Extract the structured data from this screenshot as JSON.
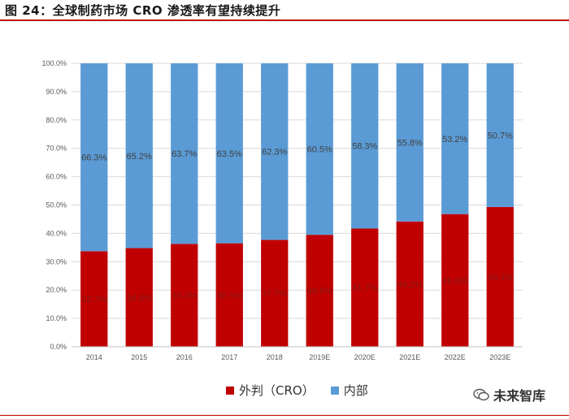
{
  "figure_title": "图 24：全球制药市场 CRO 渗透率有望持续提升",
  "watermark": "未来智库",
  "colors": {
    "cro": "#c00000",
    "internal": "#5b9bd5",
    "accent": "#c00000"
  },
  "chart_data": {
    "type": "bar",
    "stacked": true,
    "title": "",
    "xlabel": "",
    "ylabel": "",
    "ylim": [
      0,
      100
    ],
    "yticks": [
      "0.0%",
      "10.0%",
      "20.0%",
      "30.0%",
      "40.0%",
      "50.0%",
      "60.0%",
      "70.0%",
      "80.0%",
      "90.0%",
      "100.0%"
    ],
    "grid": true,
    "legend_position": "bottom",
    "categories": [
      "2014",
      "2015",
      "2016",
      "2017",
      "2018",
      "2019E",
      "2020E",
      "2021E",
      "2022E",
      "2023E"
    ],
    "series": [
      {
        "name": "外判（CRO）",
        "values": [
          33.7,
          34.8,
          36.3,
          36.5,
          37.7,
          39.5,
          41.7,
          44.2,
          46.8,
          49.3
        ],
        "labels": [
          "33.7%",
          "34.8%",
          "36.3%",
          "36.5%",
          "37.7%",
          "39.5%",
          "41.7%",
          "44.2%",
          "46.8%",
          "49.3%"
        ]
      },
      {
        "name": "内部",
        "values": [
          66.3,
          65.2,
          63.7,
          63.5,
          62.3,
          60.5,
          58.3,
          55.8,
          53.2,
          50.7
        ],
        "labels": [
          "66.3%",
          "65.2%",
          "63.7%",
          "63.5%",
          "62.3%",
          "60.5%",
          "58.3%",
          "55.8%",
          "53.2%",
          "50.7%"
        ]
      }
    ]
  }
}
